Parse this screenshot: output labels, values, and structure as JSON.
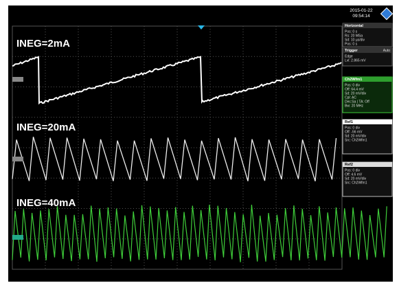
{
  "labels": [
    "INEG=2mA",
    "INEG=20mA",
    "INEG=40mA"
  ],
  "clock": {
    "date": "2015-01-22",
    "time": "09:54:14"
  },
  "panel": {
    "horizontal": {
      "title": "Horizontal",
      "lines": [
        "Pos: 0 s",
        "Rs: 20 MSa",
        "Sd: 10 µs/div",
        "Pos: 0 s"
      ]
    },
    "trigger": {
      "title": "Trigger",
      "mode": "Auto",
      "lines": [
        "Edge",
        "Lvl: 2.865 mV"
      ]
    },
    "channel": {
      "title": "Ch2Wfm1",
      "lines": [
        "Pos: 0 div",
        "Off: 64.4 mV",
        "Sd: 20 mV/div",
        "Cpl: AC",
        "Dec:Sa | TA: Off",
        "Bw: 20 MHz"
      ]
    },
    "ref1": {
      "title": "Ref1",
      "lines": [
        "Pos: 0 div",
        "Off: -56 mV",
        "Sd: 20 mV/div",
        "Src: Ch2Wfm1"
      ]
    },
    "ref2": {
      "title": "Ref2",
      "lines": [
        "Pos: 0 div",
        "Off: 4.6 mV",
        "Sd: 20 mV/div",
        "Src: Ch2Wfm1"
      ]
    }
  }
}
